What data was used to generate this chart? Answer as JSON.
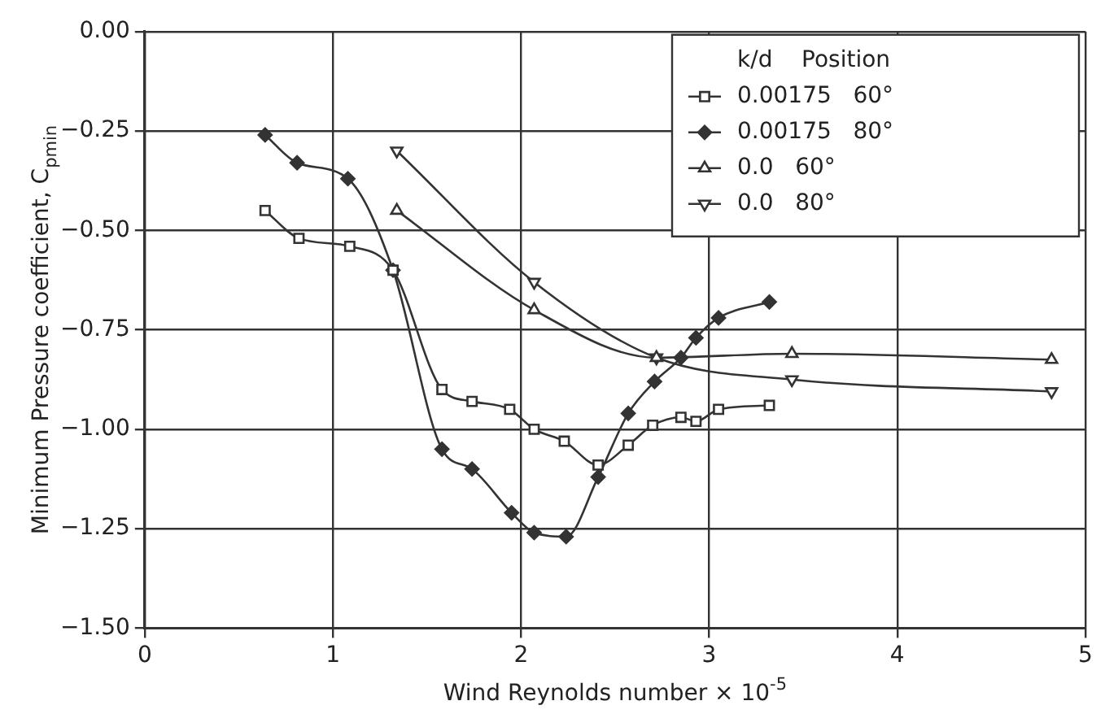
{
  "chart_data": {
    "type": "line",
    "xlabel": "Wind Reynolds number × 10$^{-5}$",
    "ylabel": "Minimum Pressure coefficient, C$_{pmin}$",
    "legend_title": "k/d    Position",
    "legend": "top right",
    "grid": true,
    "line_style": "solid",
    "xlim": [
      0,
      5
    ],
    "xticks": [
      0,
      1,
      2,
      3,
      4,
      5
    ],
    "ylim": [
      -1.5,
      0
    ],
    "yticks": [
      {
        "value": -1.5,
        "label": "−1.50"
      },
      {
        "value": -1.25,
        "label": "−1.25"
      },
      {
        "value": -1,
        "label": "−1.00"
      },
      {
        "value": -0.75,
        "label": "−0.75"
      },
      {
        "value": -0.5,
        "label": "−0.50"
      },
      {
        "value": -0.25,
        "label": "−0.25"
      },
      {
        "value": 0,
        "label": "0.00"
      }
    ],
    "series": [
      {
        "name": "0.00175   60°",
        "color": "#333333",
        "marker": "square",
        "x": [
          0.64,
          0.82,
          1.09,
          1.32,
          1.58,
          1.74,
          1.94,
          2.07,
          2.23,
          2.41,
          2.57,
          2.7,
          2.85,
          2.93,
          3.05,
          3.32
        ],
        "values": [
          -0.45,
          -0.52,
          -0.54,
          -0.6,
          -0.9,
          -0.93,
          -0.95,
          -1.0,
          -1.03,
          -1.09,
          -1.04,
          -0.99,
          -0.97,
          -0.98,
          -0.95,
          -0.94
        ]
      },
      {
        "name": "0.00175   80°",
        "color": "#333333",
        "marker": "diamond",
        "x": [
          0.64,
          0.81,
          1.08,
          1.32,
          1.58,
          1.74,
          1.95,
          2.07,
          2.24,
          2.41,
          2.57,
          2.71,
          2.85,
          2.93,
          3.05,
          3.32
        ],
        "values": [
          -0.26,
          -0.33,
          -0.37,
          -0.6,
          -1.05,
          -1.1,
          -1.21,
          -1.26,
          -1.27,
          -1.12,
          -0.96,
          -0.88,
          -0.82,
          -0.77,
          -0.72,
          -0.68
        ]
      },
      {
        "name": "0.0   60°",
        "color": "#333333",
        "marker": "triangle",
        "x": [
          1.34,
          2.07,
          2.72,
          3.44,
          4.82
        ],
        "values": [
          -0.45,
          -0.7,
          -0.82,
          -0.81,
          -0.825
        ]
      },
      {
        "name": "0.0   80°",
        "color": "#333333",
        "marker": "triangle-down",
        "x": [
          1.34,
          2.07,
          2.72,
          3.44,
          4.82
        ],
        "values": [
          -0.3,
          -0.63,
          -0.82,
          -0.875,
          -0.905
        ]
      }
    ]
  }
}
